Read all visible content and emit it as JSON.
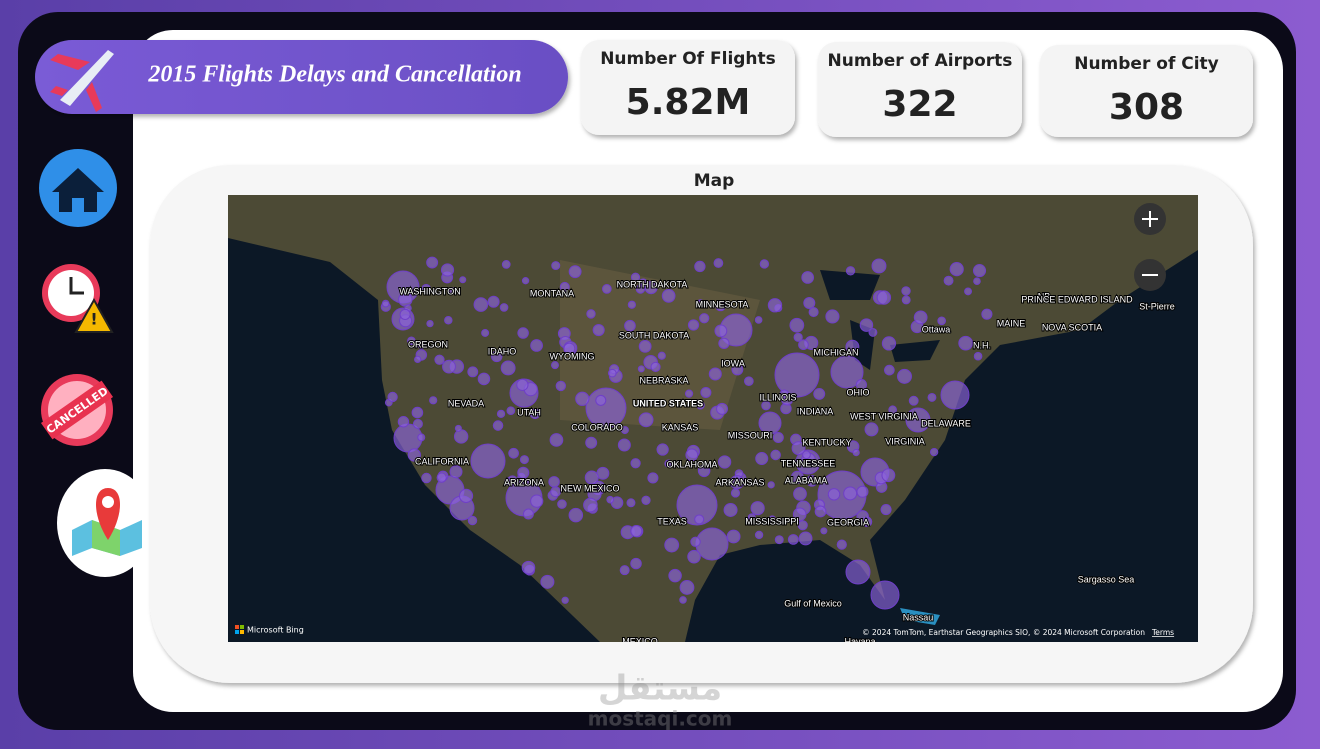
{
  "header": {
    "title": "2015 Flights Delays and Cancellation"
  },
  "nav": {
    "cancelled_badge": "CANCELLED"
  },
  "kpis": [
    {
      "label": "Number Of Flights",
      "value": "5.82M"
    },
    {
      "label": "Number of Airports",
      "value": 322
    },
    {
      "label": "Number of City",
      "value": 308
    }
  ],
  "map": {
    "title": "Map",
    "labels": [
      "WASHINGTON",
      "MONTANA",
      "NORTH DAKOTA",
      "MINNESOTA",
      "OREGON",
      "IDAHO",
      "WYOMING",
      "SOUTH DAKOTA",
      "NEBRASKA",
      "IOWA",
      "UNITED STATES",
      "NEVADA",
      "UTAH",
      "COLORADO",
      "KANSAS",
      "MISSOURI",
      "ILLINOIS",
      "INDIANA",
      "OHIO",
      "MICHIGAN",
      "CALIFORNIA",
      "OKLAHOMA",
      "ARKANSAS",
      "TENNESSEE",
      "KENTUCKY",
      "WEST VIRGINIA",
      "VIRGINIA",
      "DELAWARE",
      "NEW MEXICO",
      "ARIZONA",
      "TEXAS",
      "MISSISSIPPI",
      "ALABAMA",
      "GEORGIA",
      "Ottawa",
      "MAINE",
      "NB",
      "PRINCE EDWARD ISLAND",
      "NOVA SCOTIA",
      "St-Pierre",
      "N.H.",
      "Sargasso Sea",
      "Gulf of Mexico",
      "Nassau",
      "MEXICO",
      "Havana"
    ],
    "brand": "Microsoft Bing",
    "attribution": "© 2024 TomTom, Earthstar Geographics SIO, © 2024 Microsoft Corporation",
    "terms": "Terms"
  },
  "watermark": {
    "arabic": "مستقل",
    "latin": "mostaqi.com"
  }
}
